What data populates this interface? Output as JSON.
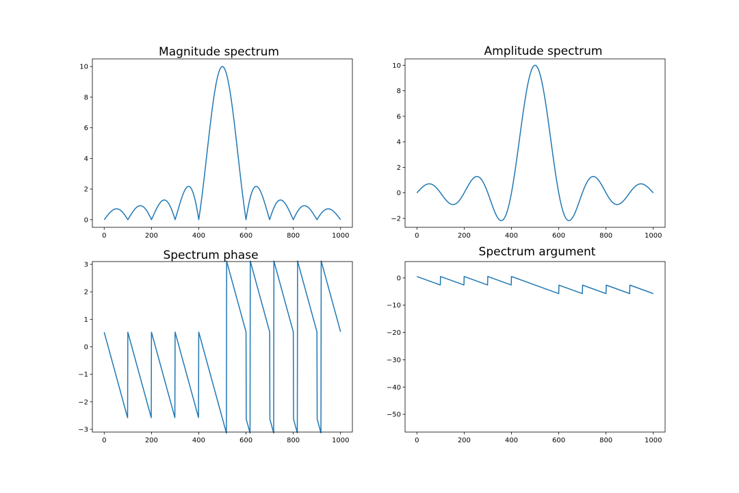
{
  "chart_data": [
    {
      "type": "line",
      "title": "Magnitude spectrum",
      "xlim": [
        -50,
        1050
      ],
      "ylim": [
        -0.5,
        10.5
      ],
      "xticks": [
        0,
        200,
        400,
        600,
        800,
        1000
      ],
      "yticks": [
        0,
        2,
        4,
        6,
        8,
        10
      ],
      "series": [
        {
          "function": "magnitude"
        }
      ]
    },
    {
      "type": "line",
      "title": "Amplitude spectrum",
      "xlim": [
        -50,
        1050
      ],
      "ylim": [
        -2.7,
        10.5
      ],
      "xticks": [
        0,
        200,
        400,
        600,
        800,
        1000
      ],
      "yticks": [
        -2,
        0,
        2,
        4,
        6,
        8,
        10
      ],
      "series": [
        {
          "function": "amplitude"
        }
      ]
    },
    {
      "type": "line",
      "title": "Spectrum phase",
      "xlim": [
        -50,
        1050
      ],
      "ylim": [
        -3.1,
        3.1
      ],
      "xticks": [
        0,
        200,
        400,
        600,
        800,
        1000
      ],
      "yticks": [
        -3,
        -2,
        -1,
        0,
        1,
        2,
        3
      ],
      "series": [
        {
          "function": "phase"
        }
      ]
    },
    {
      "type": "line",
      "title": "Spectrum argument",
      "xlim": [
        -50,
        1050
      ],
      "ylim": [
        -56.5,
        6
      ],
      "xticks": [
        0,
        200,
        400,
        600,
        800,
        1000
      ],
      "yticks": [
        -50,
        -40,
        -30,
        -20,
        -10,
        0
      ],
      "series": [
        {
          "function": "unwrapped-phase"
        }
      ]
    }
  ]
}
